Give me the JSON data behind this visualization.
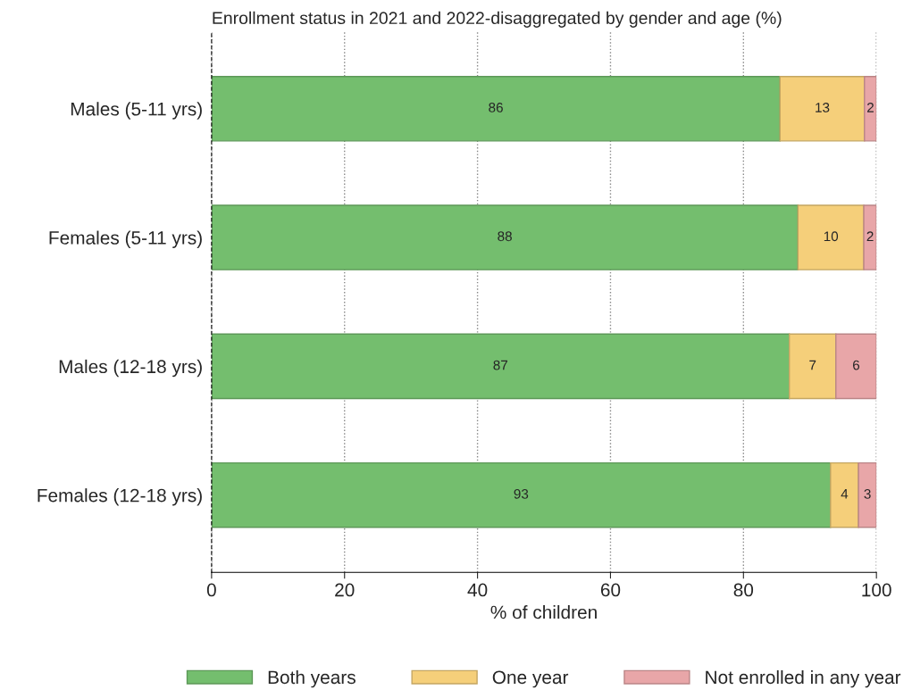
{
  "chart_data": {
    "type": "bar",
    "orientation": "horizontal",
    "stacked": true,
    "title": "Enrollment status in 2021 and 2022-disaggregated by gender and age (%)",
    "xlabel": "% of children",
    "categories": [
      "Males (5-11 yrs)",
      "Females (5-11 yrs)",
      "Males (12-18 yrs)",
      "Females (12-18 yrs)"
    ],
    "series": [
      {
        "name": "Both years",
        "color": "#74be6e",
        "values": [
          85.5,
          88.2,
          86.9,
          93.1
        ],
        "value_labels": [
          "86",
          "88",
          "87",
          "93"
        ]
      },
      {
        "name": "One year",
        "color": "#f5cf7a",
        "values": [
          12.7,
          9.9,
          7.0,
          4.2
        ],
        "value_labels": [
          "13",
          "10",
          "7",
          "4"
        ]
      },
      {
        "name": "Not enrolled in any year",
        "color": "#e8a6a8",
        "values": [
          1.8,
          1.9,
          6.1,
          2.7
        ],
        "value_labels": [
          "2",
          "2",
          "6",
          "3"
        ]
      }
    ],
    "xlim": [
      0,
      100
    ],
    "xticks": [
      0,
      20,
      40,
      60,
      80,
      100
    ],
    "grid": "x",
    "legend": "bottom"
  }
}
